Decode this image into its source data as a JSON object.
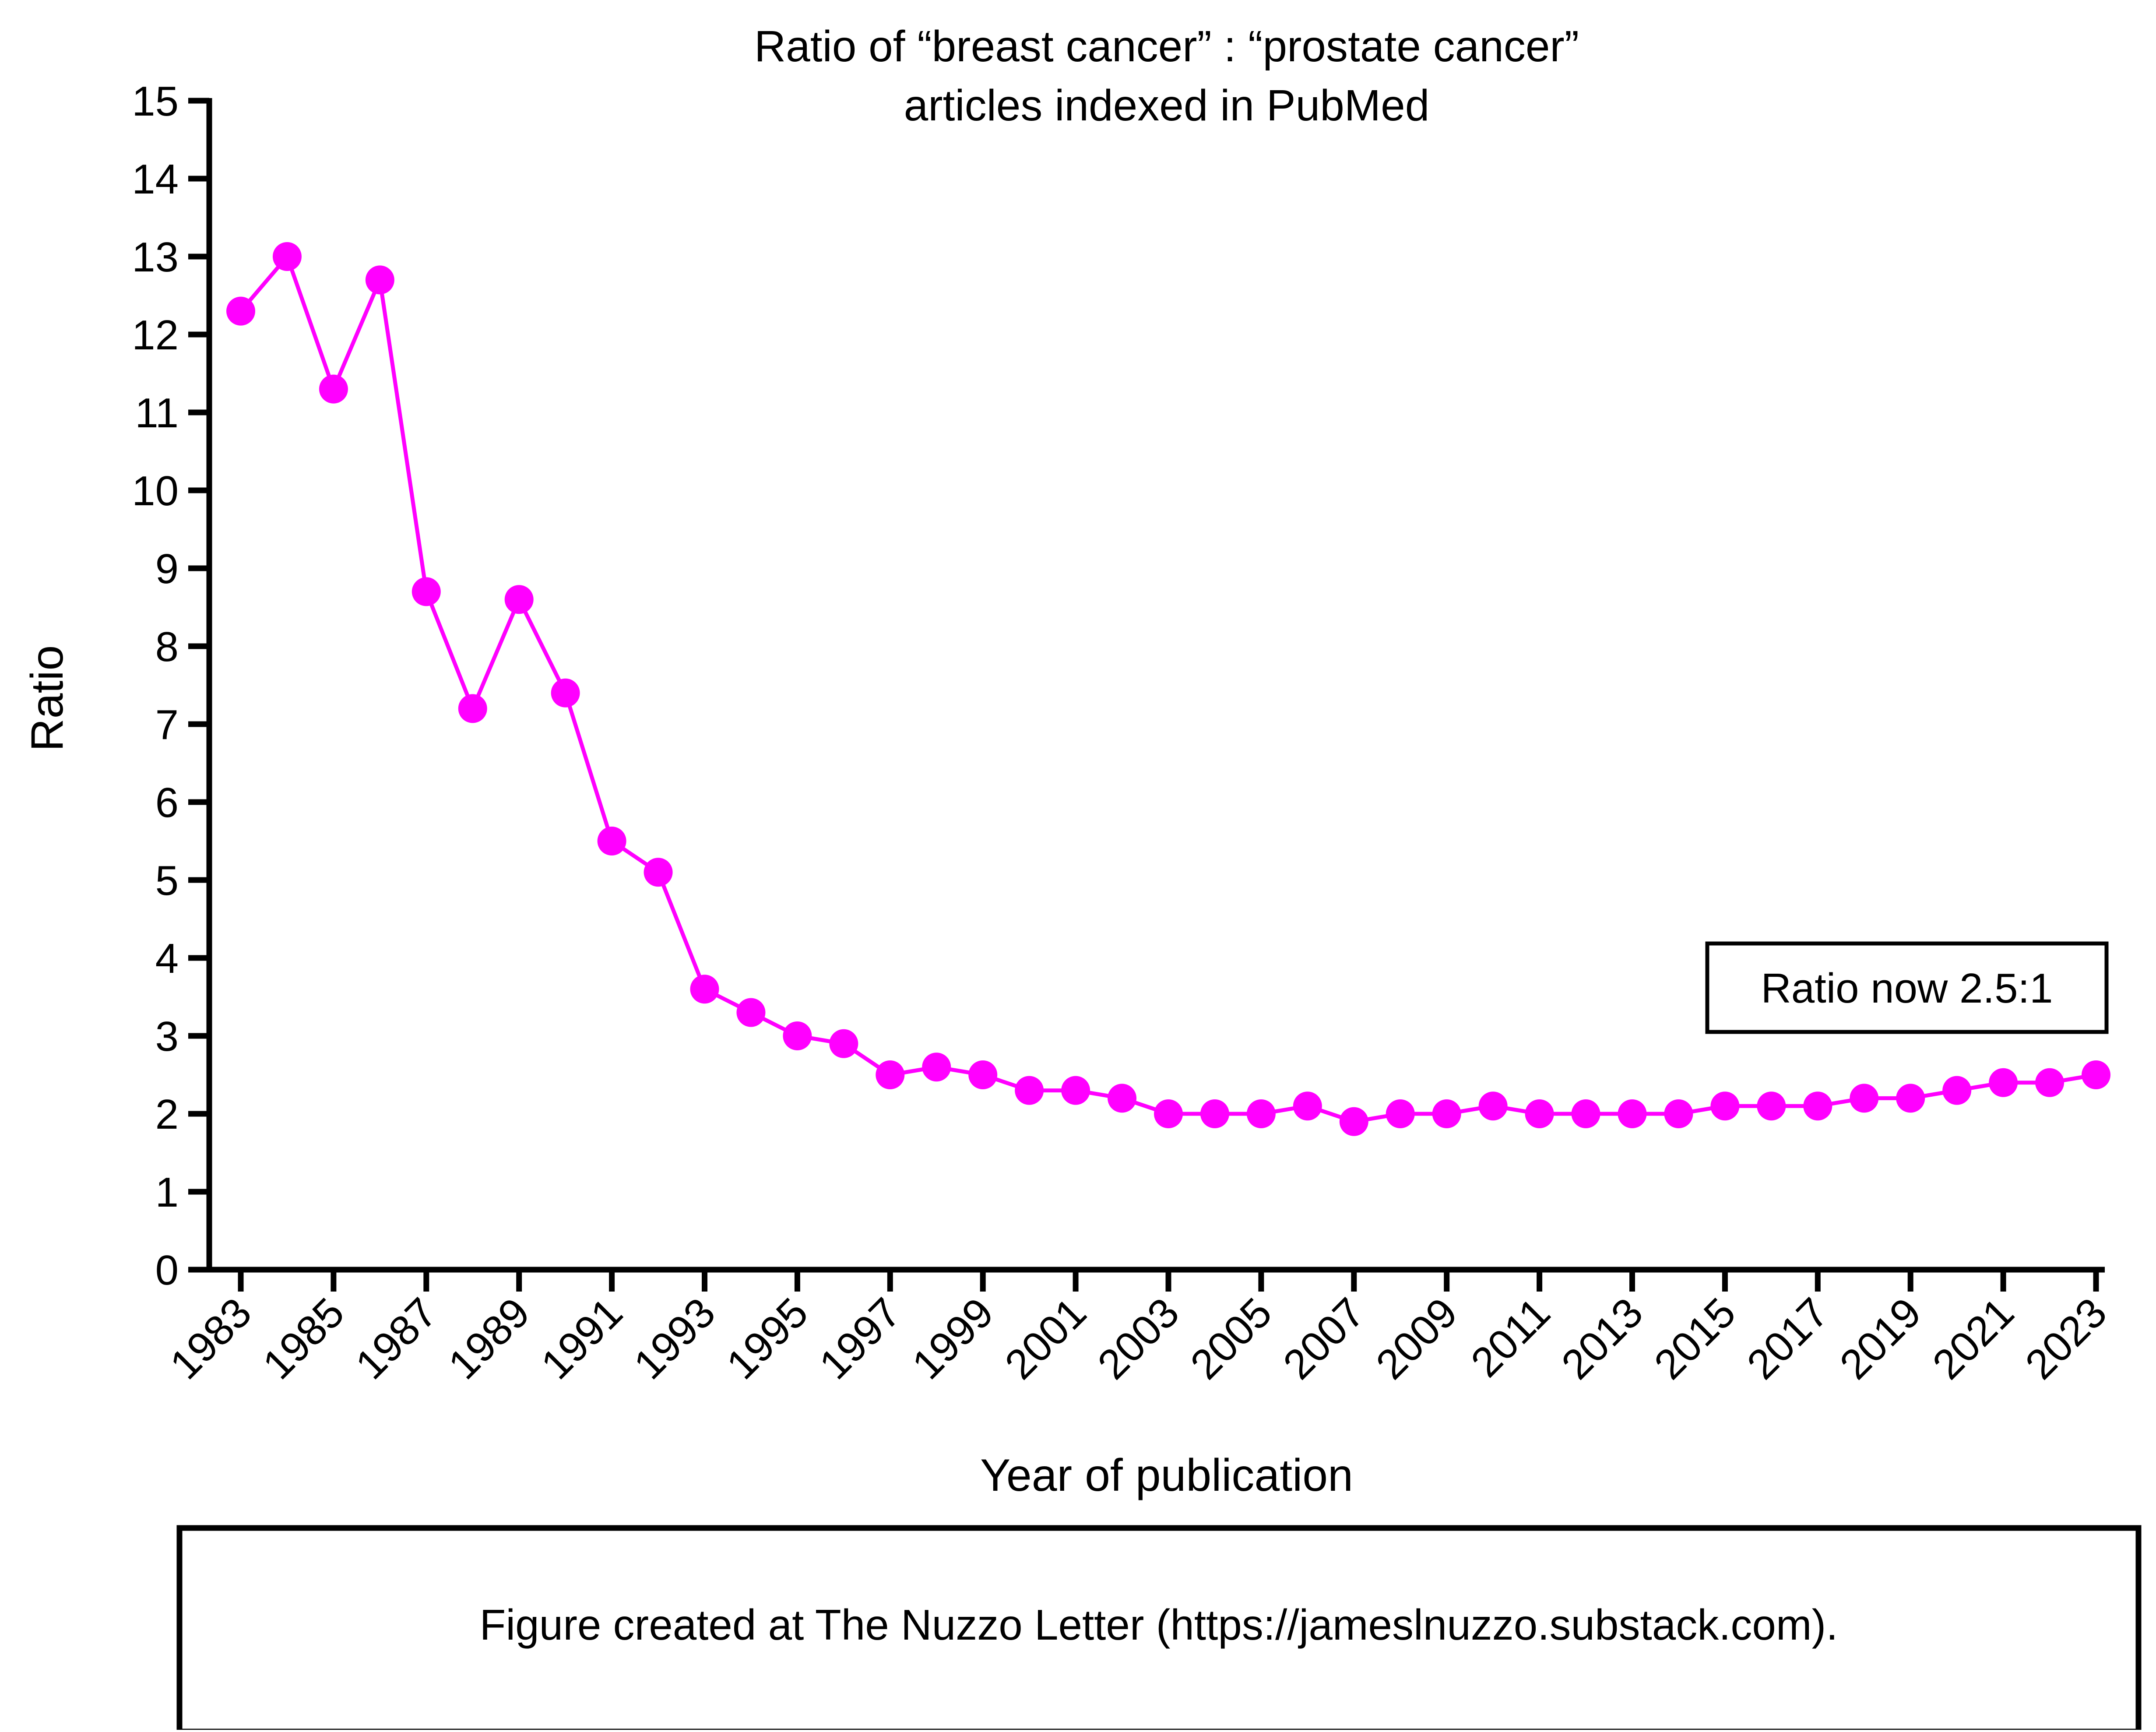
{
  "chart_data": {
    "type": "line",
    "title_lines": [
      "Ratio of “breast cancer” : “prostate cancer”",
      "articles indexed in PubMed"
    ],
    "xlabel": "Year of publication",
    "ylabel": "Ratio",
    "xlim": [
      1983,
      2023
    ],
    "ylim": [
      0,
      15
    ],
    "y_ticks": [
      0,
      1,
      2,
      3,
      4,
      5,
      6,
      7,
      8,
      9,
      10,
      11,
      12,
      13,
      14,
      15
    ],
    "x_tick_labels": [
      "1983",
      "1985",
      "1987",
      "1989",
      "1991",
      "1993",
      "1995",
      "1997",
      "1999",
      "2001",
      "2003",
      "2005",
      "2007",
      "2009",
      "2011",
      "2013",
      "2015",
      "2017",
      "2019",
      "2021",
      "2023"
    ],
    "grid": false,
    "legend": "none",
    "series": [
      {
        "color": "#ff00ff",
        "x": [
          1983,
          1984,
          1985,
          1986,
          1987,
          1988,
          1989,
          1990,
          1991,
          1992,
          1993,
          1994,
          1995,
          1996,
          1997,
          1998,
          1999,
          2000,
          2001,
          2002,
          2003,
          2004,
          2005,
          2006,
          2007,
          2008,
          2009,
          2010,
          2011,
          2012,
          2013,
          2014,
          2015,
          2016,
          2017,
          2018,
          2019,
          2020,
          2021,
          2022,
          2023
        ],
        "y": [
          12.3,
          13.0,
          11.3,
          12.7,
          8.7,
          7.2,
          8.6,
          7.4,
          5.5,
          5.1,
          3.6,
          3.3,
          3.0,
          2.9,
          2.5,
          2.6,
          2.5,
          2.3,
          2.3,
          2.2,
          2.0,
          2.0,
          2.0,
          2.1,
          1.9,
          2.0,
          2.0,
          2.1,
          2.0,
          2.0,
          2.0,
          2.0,
          2.1,
          2.1,
          2.1,
          2.2,
          2.2,
          2.3,
          2.4,
          2.4,
          2.5
        ]
      }
    ],
    "annotation": "Ratio now 2.5:1"
  },
  "footer": {
    "credit": "Figure created at The Nuzzo Letter (https://jameslnuzzo.substack.com)."
  }
}
